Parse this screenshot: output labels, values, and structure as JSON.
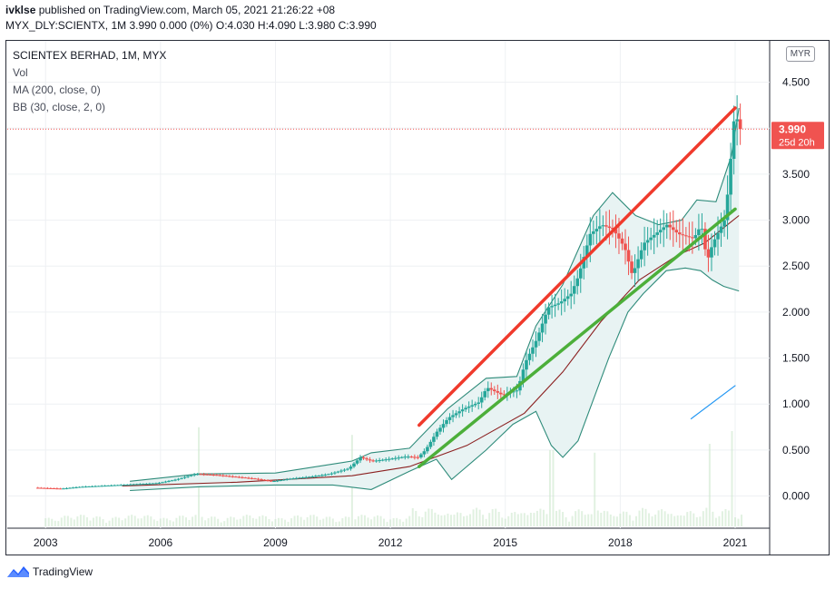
{
  "header": {
    "publisher": "ivklse",
    "published_text": " published on TradingView.com, March 05, 2021 21:26:22 +08",
    "symbol_line": "MYX_DLY:SCIENTX, 1M 3.990 0.000 (0%) O:4.030 H:4.090 L:3.980 C:3.990"
  },
  "legend": {
    "symbol": "SCIENTEX BERHAD, 1M, MYX",
    "vol": "Vol",
    "ma": "MA (200, close, 0)",
    "bb": "BB (30, close, 2, 0)"
  },
  "currency": "MYR",
  "price_tag": {
    "price": "3.990",
    "countdown": "25d 20h"
  },
  "brand": {
    "name": "TradingView"
  },
  "colors": {
    "up": "#26a69a",
    "down": "#ef5350",
    "ma": "#8b2020",
    "bb": "#2e8b7a",
    "bb_fill": "#e8f3f3",
    "red_trend": "#f03a2c",
    "green_trend": "#4caf3a",
    "blue_line": "#2196f3",
    "price_tag_bg": "#f05350",
    "volume": "#c8e6c9"
  },
  "chart_data": {
    "type": "candlestick",
    "title": "SCIENTEX BERHAD, 1M, MYX",
    "xlabel": "",
    "ylabel": "MYR",
    "x_range": [
      2002.0,
      2021.9
    ],
    "ylim": [
      -0.35,
      4.95
    ],
    "y_ticks": [
      4.5,
      4.0,
      3.5,
      3.0,
      2.5,
      2.0,
      1.5,
      1.0,
      0.5,
      0.0
    ],
    "y_tick_labels": [
      "4.500",
      "4.000",
      "3.500",
      "3.000",
      "2.500",
      "2.000",
      "1.500",
      "1.000",
      "0.500",
      "0.000"
    ],
    "x_ticks": [
      2003,
      2006,
      2009,
      2012,
      2015,
      2018,
      2021
    ],
    "x_tick_labels": [
      "2003",
      "2006",
      "2009",
      "2012",
      "2015",
      "2018",
      "2021"
    ],
    "last_price": 3.99,
    "price_path": [
      [
        2002.8,
        0.09
      ],
      [
        2003.5,
        0.08
      ],
      [
        2004.0,
        0.1
      ],
      [
        2004.5,
        0.11
      ],
      [
        2005.0,
        0.12
      ],
      [
        2005.5,
        0.13
      ],
      [
        2006.0,
        0.14
      ],
      [
        2006.5,
        0.18
      ],
      [
        2007.0,
        0.24
      ],
      [
        2007.5,
        0.23
      ],
      [
        2008.0,
        0.21
      ],
      [
        2008.5,
        0.19
      ],
      [
        2009.0,
        0.16
      ],
      [
        2009.5,
        0.19
      ],
      [
        2010.0,
        0.21
      ],
      [
        2010.5,
        0.24
      ],
      [
        2011.0,
        0.3
      ],
      [
        2011.3,
        0.42
      ],
      [
        2011.6,
        0.38
      ],
      [
        2012.0,
        0.4
      ],
      [
        2012.5,
        0.43
      ],
      [
        2012.8,
        0.42
      ],
      [
        2013.0,
        0.5
      ],
      [
        2013.3,
        0.7
      ],
      [
        2013.6,
        0.85
      ],
      [
        2014.0,
        0.95
      ],
      [
        2014.4,
        1.02
      ],
      [
        2014.6,
        1.18
      ],
      [
        2015.0,
        1.1
      ],
      [
        2015.4,
        1.15
      ],
      [
        2015.6,
        1.45
      ],
      [
        2015.9,
        1.7
      ],
      [
        2016.2,
        2.05
      ],
      [
        2016.5,
        2.1
      ],
      [
        2016.8,
        2.2
      ],
      [
        2017.0,
        2.4
      ],
      [
        2017.3,
        2.85
      ],
      [
        2017.6,
        2.95
      ],
      [
        2017.9,
        2.9
      ],
      [
        2018.2,
        2.7
      ],
      [
        2018.4,
        2.4
      ],
      [
        2018.7,
        2.75
      ],
      [
        2019.0,
        2.85
      ],
      [
        2019.3,
        2.95
      ],
      [
        2019.6,
        2.85
      ],
      [
        2020.0,
        2.8
      ],
      [
        2020.2,
        2.95
      ],
      [
        2020.35,
        2.55
      ],
      [
        2020.5,
        2.75
      ],
      [
        2020.8,
        3.0
      ],
      [
        2020.95,
        3.5
      ],
      [
        2021.0,
        4.0
      ],
      [
        2021.1,
        4.15
      ],
      [
        2021.2,
        3.99
      ]
    ],
    "ma_200": [
      [
        2005.0,
        0.11
      ],
      [
        2008.0,
        0.15
      ],
      [
        2011.0,
        0.22
      ],
      [
        2012.5,
        0.32
      ],
      [
        2014.0,
        0.55
      ],
      [
        2015.5,
        0.9
      ],
      [
        2016.5,
        1.35
      ],
      [
        2017.5,
        1.9
      ],
      [
        2018.5,
        2.35
      ],
      [
        2019.5,
        2.62
      ],
      [
        2020.2,
        2.75
      ],
      [
        2020.8,
        2.95
      ],
      [
        2021.1,
        3.05
      ]
    ],
    "bb_upper": [
      [
        2005.2,
        0.16
      ],
      [
        2007.0,
        0.24
      ],
      [
        2009.0,
        0.25
      ],
      [
        2011.0,
        0.38
      ],
      [
        2011.5,
        0.47
      ],
      [
        2012.5,
        0.52
      ],
      [
        2013.5,
        0.95
      ],
      [
        2014.5,
        1.28
      ],
      [
        2015.3,
        1.3
      ],
      [
        2015.8,
        1.85
      ],
      [
        2016.5,
        2.3
      ],
      [
        2017.3,
        3.05
      ],
      [
        2017.8,
        3.3
      ],
      [
        2018.4,
        3.05
      ],
      [
        2019.0,
        2.95
      ],
      [
        2019.6,
        3.0
      ],
      [
        2020.0,
        3.22
      ],
      [
        2020.5,
        3.2
      ],
      [
        2020.9,
        3.7
      ],
      [
        2021.1,
        4.22
      ]
    ],
    "bb_lower": [
      [
        2005.2,
        0.06
      ],
      [
        2007.0,
        0.1
      ],
      [
        2009.0,
        0.12
      ],
      [
        2010.5,
        0.12
      ],
      [
        2011.5,
        0.07
      ],
      [
        2012.5,
        0.27
      ],
      [
        2013.2,
        0.4
      ],
      [
        2013.6,
        0.18
      ],
      [
        2014.5,
        0.5
      ],
      [
        2015.2,
        0.78
      ],
      [
        2015.8,
        0.92
      ],
      [
        2016.2,
        0.55
      ],
      [
        2016.5,
        0.42
      ],
      [
        2016.9,
        0.6
      ],
      [
        2017.3,
        1.05
      ],
      [
        2017.7,
        1.5
      ],
      [
        2018.2,
        2.0
      ],
      [
        2018.6,
        2.2
      ],
      [
        2019.2,
        2.45
      ],
      [
        2019.7,
        2.48
      ],
      [
        2020.1,
        2.45
      ],
      [
        2020.4,
        2.35
      ],
      [
        2020.7,
        2.28
      ],
      [
        2021.1,
        2.23
      ]
    ],
    "trendlines": [
      {
        "name": "red-trendline",
        "from": [
          2012.75,
          0.77
        ],
        "to": [
          2021.0,
          4.22
        ]
      },
      {
        "name": "green-trendline",
        "from": [
          2012.75,
          0.32
        ],
        "to": [
          2021.0,
          3.12
        ]
      },
      {
        "name": "blue-line",
        "from": [
          2019.85,
          0.84
        ],
        "to": [
          2021.0,
          1.2
        ]
      }
    ],
    "volume_spikes": [
      [
        2007.0,
        0.78
      ],
      [
        2011.0,
        0.72
      ],
      [
        2016.2,
        0.6
      ],
      [
        2017.3,
        0.58
      ],
      [
        2020.3,
        0.65
      ],
      [
        2020.9,
        0.75
      ]
    ]
  }
}
